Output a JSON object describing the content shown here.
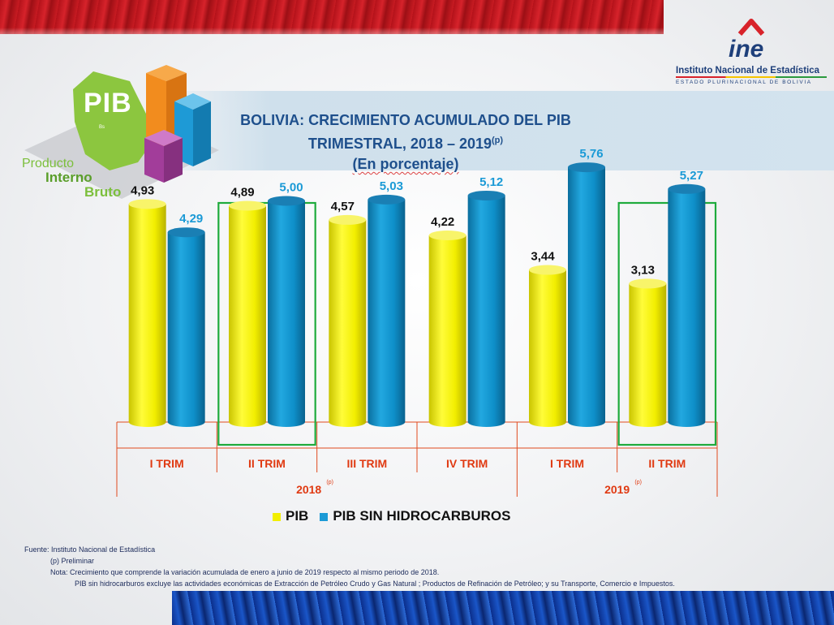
{
  "header": {
    "title": "BOLIVIA: CRECIMIENTO ACUMULADO DEL PIB TRIMESTRAL, 2018 – 2019",
    "title_sup": "(p)",
    "subtitle": "(En porcentaje)"
  },
  "logo": {
    "acronym": "ine",
    "name": "Instituto Nacional de Estadística",
    "subname": "ESTADO PLURINACIONAL DE BOLIVIA"
  },
  "pib_graphic": {
    "word": "PIB",
    "bs": "Bs",
    "line1": "Producto",
    "line2": "Interno",
    "line3": "Bruto",
    "colors": {
      "map": "#8cc63f",
      "orange": "#f28c1e",
      "blue": "#1e9ad6",
      "purple": "#a23d9a"
    }
  },
  "chart_data": {
    "type": "bar",
    "categories": [
      "I TRIM",
      "II TRIM",
      "III TRIM",
      "IV TRIM",
      "I TRIM",
      "II TRIM"
    ],
    "groups": [
      {
        "label": "2018",
        "sup": "(p)",
        "categories": [
          0,
          1,
          2,
          3
        ]
      },
      {
        "label": "2019",
        "sup": "(p)",
        "categories": [
          4,
          5
        ]
      }
    ],
    "series": [
      {
        "name": "PIB",
        "color": "#f2ee00",
        "values": [
          4.93,
          4.89,
          4.57,
          4.22,
          3.44,
          3.13
        ],
        "labels": [
          "4,93",
          "4,89",
          "4,57",
          "4,22",
          "3,44",
          "3,13"
        ],
        "label_color": "#111111"
      },
      {
        "name": "PIB SIN HIDROCARBUROS",
        "color": "#0e8fc9",
        "values": [
          4.29,
          5.0,
          5.03,
          5.12,
          5.76,
          5.27
        ],
        "labels": [
          "4,29",
          "5,00",
          "5,03",
          "5,12",
          "5,76",
          "5,27"
        ],
        "label_color": "#1b9ad6"
      }
    ],
    "highlighted_categories": [
      1,
      5
    ],
    "highlight_color": "#1eab3c",
    "axis_color": "#e04a1e",
    "category_label_color": "#e03a12",
    "ylim": [
      0,
      6.5
    ],
    "legend_position": "bottom"
  },
  "notes": {
    "source": "Fuente: Instituto Nacional de Estadística",
    "prelim": "(p) Preliminar",
    "note": "Nota: Crecimiento que  comprende la variación acumulada de enero a junio de 2019 respecto al mismo periodo de 2018.",
    "note2": "PIB sin hidrocarburos excluye las actividades económicas de Extracción de Petróleo Crudo y Gas Natural ; Productos de Refinación de Petróleo; y su Transporte, Comercio e Impuestos."
  }
}
